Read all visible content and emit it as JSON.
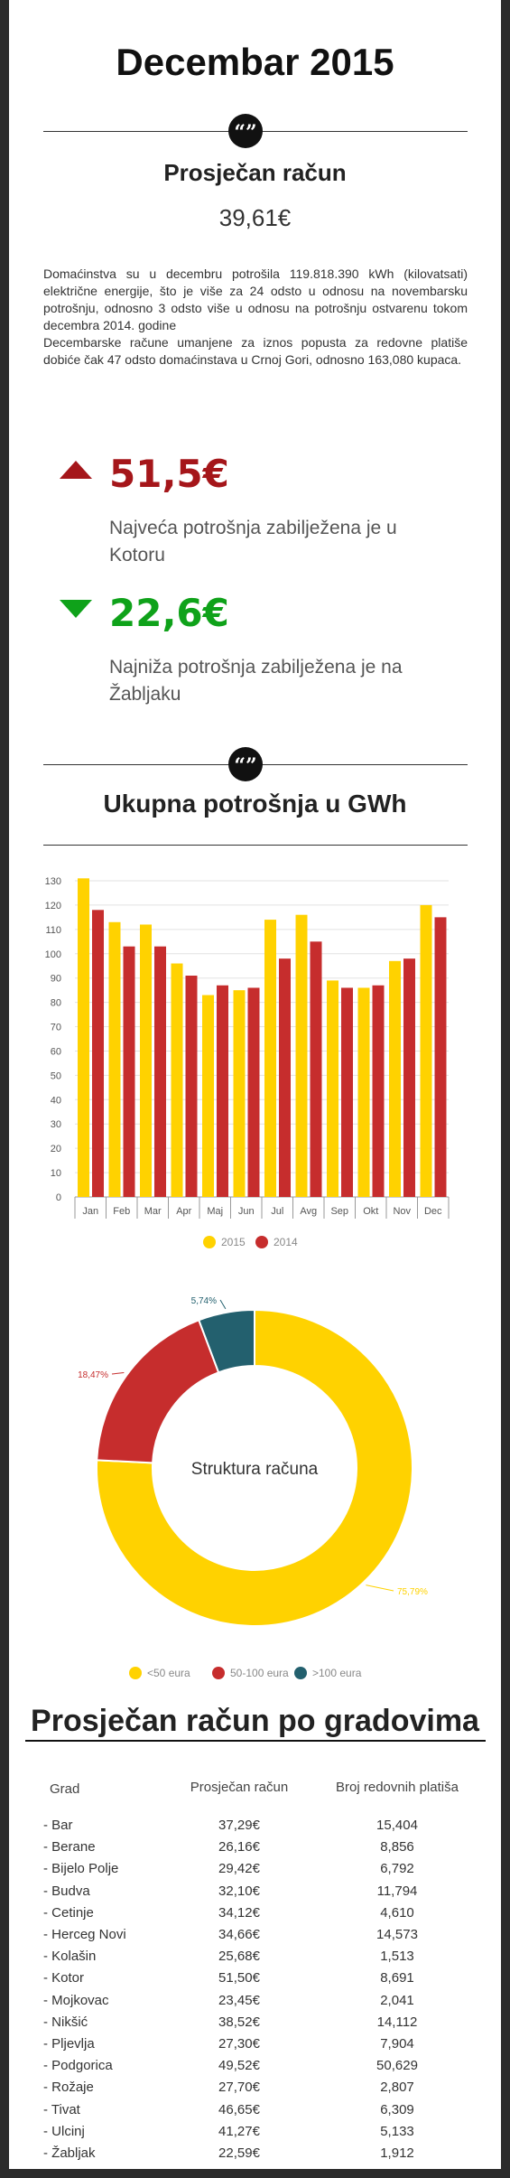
{
  "page": {
    "title": "Decembar 2015"
  },
  "average": {
    "label": "Prosječan račun",
    "value": "39,61€"
  },
  "paragraph": {
    "line1": "Domaćinstva su u decembru potrošila 119.818.390 kWh (kilovatsati) električne energije, što je više za 24 odsto u odnosu na novembarsku potrošnju, odnosno 3 odsto više u odnosu na potrošnju ostvarenu tokom decembra 2014. godine",
    "line2": "Decembarske račune umanjene za iznos popusta za redovne platiše dobiće čak 47 odsto domaćinstava u Crnoj Gori, odnosno 163,080 kupaca."
  },
  "highest": {
    "value": "51,5€",
    "text": "Najveća potrošnja zabilježena je u Kotoru",
    "icon": "triangle-up-icon",
    "color": "#a5161a"
  },
  "lowest": {
    "value": "22,6€",
    "text": "Najniža potrošnja zabilježena je na Žabljaku",
    "icon": "triangle-down-icon",
    "color": "#0fa21a"
  },
  "consumption_title": "Ukupna potrošnja u GWh",
  "chart_data": [
    {
      "type": "bar",
      "categories": [
        "Jan",
        "Feb",
        "Mar",
        "Apr",
        "Maj",
        "Jun",
        "Jul",
        "Avg",
        "Sep",
        "Okt",
        "Nov",
        "Dec"
      ],
      "series": [
        {
          "name": "2015",
          "color": "#ffd200",
          "values": [
            131,
            113,
            112,
            96,
            83,
            85,
            114,
            116,
            89,
            86,
            97,
            120
          ]
        },
        {
          "name": "2014",
          "color": "#c62d2d",
          "values": [
            118,
            103,
            103,
            91,
            87,
            86,
            98,
            105,
            86,
            87,
            98,
            115
          ]
        }
      ],
      "ylim": [
        0,
        130
      ],
      "yticks": [
        0,
        10,
        20,
        30,
        40,
        50,
        60,
        70,
        80,
        90,
        100,
        110,
        120,
        130
      ],
      "grid": true,
      "legend": "bottom"
    },
    {
      "type": "pie",
      "title": "Struktura računa",
      "labels": [
        "<50 eura",
        "50-100 eura",
        ">100 eura"
      ],
      "values": [
        75.79,
        18.47,
        5.74
      ],
      "value_labels": [
        "75,79%",
        "18,47%",
        "5,74%"
      ],
      "colors": [
        "#ffd200",
        "#c62d2d",
        "#23606e"
      ],
      "legend": "bottom"
    }
  ],
  "cities": {
    "title": "Prosječan račun po gradovima",
    "headers": [
      "Grad",
      "Prosječan račun",
      "Broj redovnih platiša"
    ],
    "rows": [
      [
        "- Bar",
        "37,29€",
        "15,404"
      ],
      [
        "- Berane",
        "26,16€",
        "8,856"
      ],
      [
        "- Bijelo Polje",
        "29,42€",
        "6,792"
      ],
      [
        "- Budva",
        "32,10€",
        "11,794"
      ],
      [
        "- Cetinje",
        "34,12€",
        "4,610"
      ],
      [
        "- Herceg Novi",
        "34,66€",
        "14,573"
      ],
      [
        "- Kolašin",
        "25,68€",
        "1,513"
      ],
      [
        "- Kotor",
        "51,50€",
        "8,691"
      ],
      [
        "- Mojkovac",
        "23,45€",
        "2,041"
      ],
      [
        "- Nikšić",
        "38,52€",
        "14,112"
      ],
      [
        "- Pljevlja",
        "27,30€",
        "7,904"
      ],
      [
        "- Podgorica",
        "49,52€",
        "50,629"
      ],
      [
        "- Rožaje",
        "27,70€",
        "2,807"
      ],
      [
        "- Tivat",
        "46,65€",
        "6,309"
      ],
      [
        "- Ulcinj",
        "41,27€",
        "5,133"
      ],
      [
        "- Žabljak",
        "22,59€",
        "1,912"
      ]
    ]
  }
}
